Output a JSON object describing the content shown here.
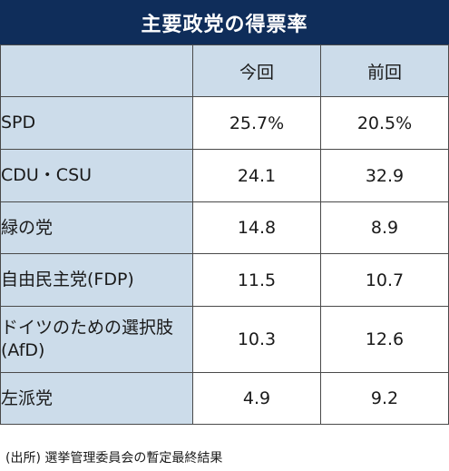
{
  "chart_data": {
    "type": "table",
    "title": "主要政党の得票率",
    "columns": [
      "今回",
      "前回"
    ],
    "rows": [
      {
        "party": "SPD",
        "current": "25.7%",
        "previous": "20.5%"
      },
      {
        "party": "CDU・CSU",
        "current": "24.1",
        "previous": "32.9"
      },
      {
        "party": "緑の党",
        "current": "14.8",
        "previous": "8.9"
      },
      {
        "party": "自由民主党(FDP)",
        "current": "11.5",
        "previous": "10.7"
      },
      {
        "party": "ドイツのための選択肢(AfD)",
        "current": "10.3",
        "previous": "12.6"
      },
      {
        "party": "左派党",
        "current": "4.9",
        "previous": "9.2"
      }
    ],
    "source": "(出所) 選挙管理委員会の暫定最終結果"
  },
  "colors": {
    "title_background": "#0f2d5a",
    "header_background": "#ccdcea",
    "border": "#4a4a4a"
  }
}
